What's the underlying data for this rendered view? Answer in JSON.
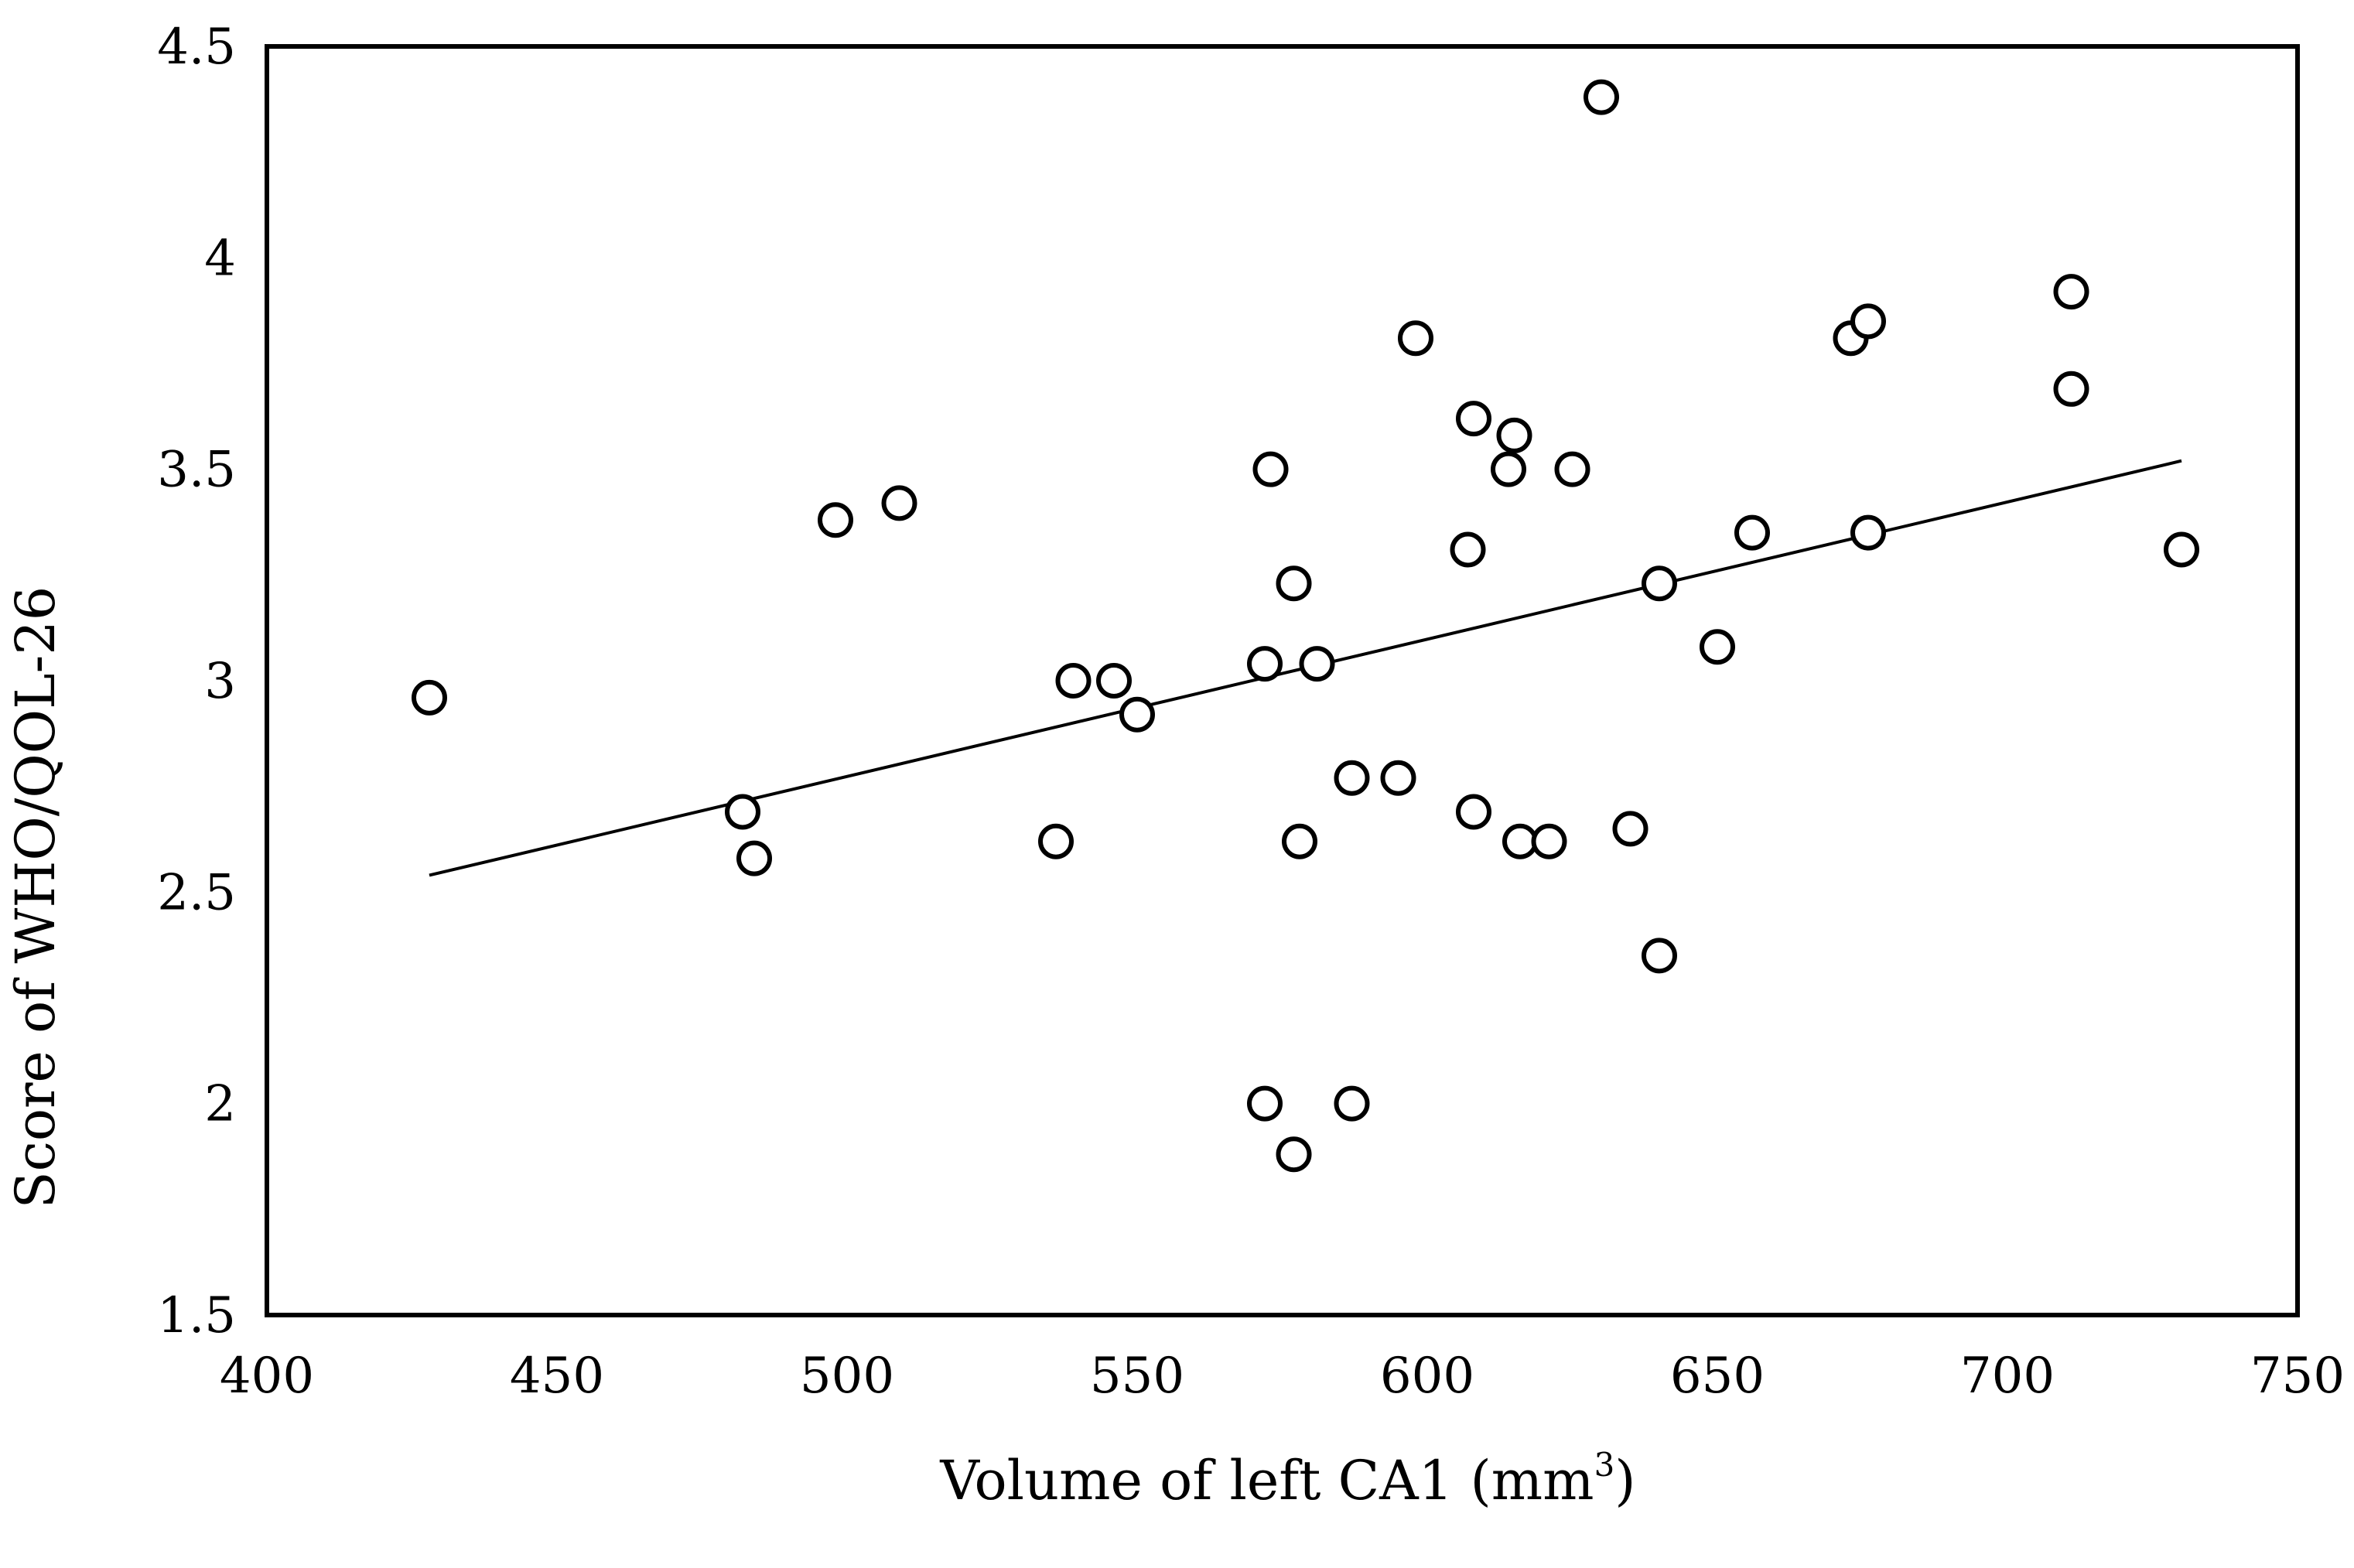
{
  "chart_data": {
    "type": "scatter",
    "title": "",
    "xlabel": "Volume of left CA1 (mm",
    "xlabel_superscript": "3",
    "xlabel_close": ")",
    "ylabel": "Score of  WHO/QOL-26",
    "xlim": [
      400,
      750
    ],
    "ylim": [
      1.5,
      4.5
    ],
    "x_ticks": [
      400,
      450,
      500,
      550,
      600,
      650,
      700,
      750
    ],
    "y_ticks": [
      1.5,
      2,
      2.5,
      3,
      3.5,
      4,
      4.5
    ],
    "x_tick_labels": [
      "400",
      "450",
      "500",
      "550",
      "600",
      "650",
      "700",
      "750"
    ],
    "y_tick_labels": [
      "1.5",
      "2",
      "2.5",
      "3",
      "3.5",
      "4",
      "4.5"
    ],
    "grid": false,
    "legend": "none",
    "marker": "open-circle",
    "points": [
      {
        "x": 428,
        "y": 2.96
      },
      {
        "x": 482,
        "y": 2.69
      },
      {
        "x": 484,
        "y": 2.58
      },
      {
        "x": 498,
        "y": 3.38
      },
      {
        "x": 509,
        "y": 3.42
      },
      {
        "x": 536,
        "y": 2.62
      },
      {
        "x": 539,
        "y": 3.0
      },
      {
        "x": 546,
        "y": 3.0
      },
      {
        "x": 550,
        "y": 2.92
      },
      {
        "x": 572,
        "y": 2.0
      },
      {
        "x": 572,
        "y": 3.04
      },
      {
        "x": 573,
        "y": 3.5
      },
      {
        "x": 577,
        "y": 3.23
      },
      {
        "x": 577,
        "y": 1.88
      },
      {
        "x": 578,
        "y": 2.62
      },
      {
        "x": 581,
        "y": 3.04
      },
      {
        "x": 587,
        "y": 2.77
      },
      {
        "x": 587,
        "y": 2.0
      },
      {
        "x": 595,
        "y": 2.77
      },
      {
        "x": 598,
        "y": 3.81
      },
      {
        "x": 607,
        "y": 3.31
      },
      {
        "x": 608,
        "y": 3.62
      },
      {
        "x": 608,
        "y": 2.69
      },
      {
        "x": 614,
        "y": 3.5
      },
      {
        "x": 615,
        "y": 3.58
      },
      {
        "x": 616,
        "y": 2.62
      },
      {
        "x": 621,
        "y": 2.62
      },
      {
        "x": 625,
        "y": 3.5
      },
      {
        "x": 630,
        "y": 4.38
      },
      {
        "x": 635,
        "y": 2.65
      },
      {
        "x": 640,
        "y": 3.23
      },
      {
        "x": 640,
        "y": 2.35
      },
      {
        "x": 650,
        "y": 3.08
      },
      {
        "x": 656,
        "y": 3.35
      },
      {
        "x": 673,
        "y": 3.81
      },
      {
        "x": 676,
        "y": 3.85
      },
      {
        "x": 676,
        "y": 3.35
      },
      {
        "x": 711,
        "y": 3.92
      },
      {
        "x": 711,
        "y": 3.69
      },
      {
        "x": 730,
        "y": 3.31
      }
    ],
    "trendline": {
      "type": "linear",
      "x": [
        428,
        730
      ],
      "y": [
        2.54,
        3.52
      ]
    }
  }
}
